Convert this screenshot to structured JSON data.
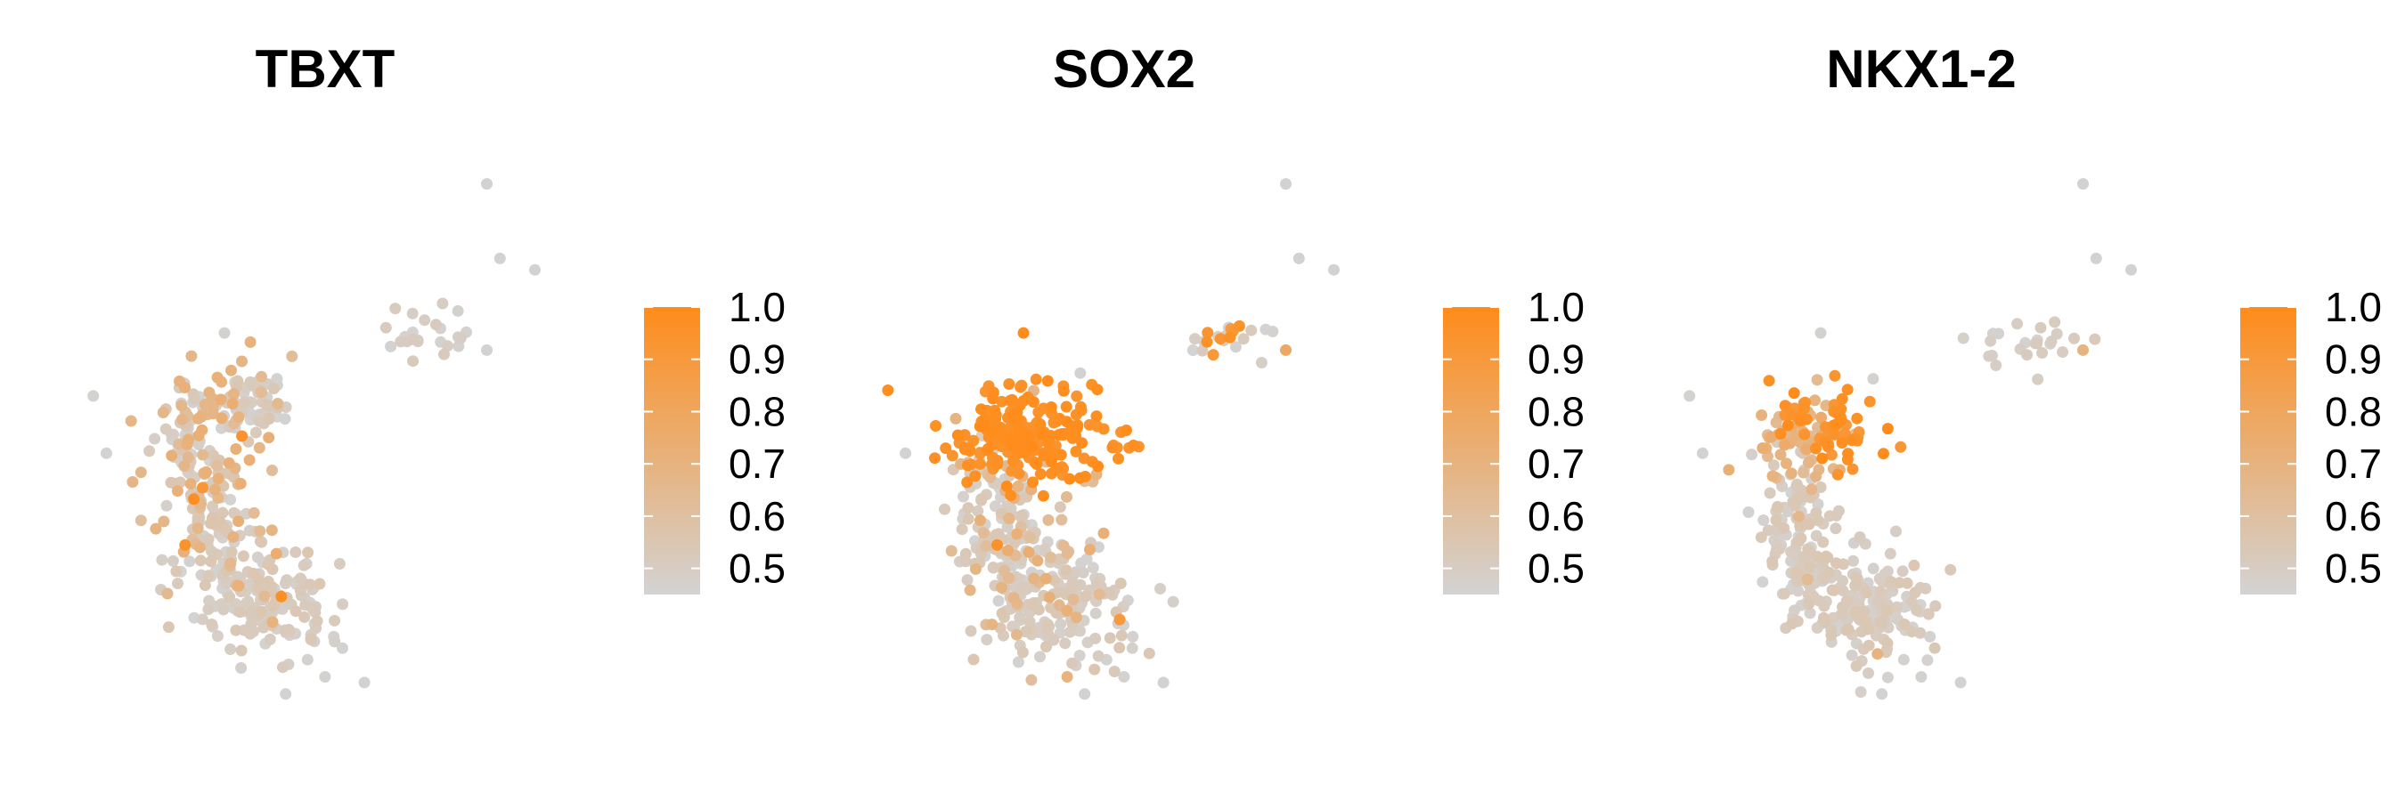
{
  "chart_data": [
    {
      "type": "scatter",
      "title": "TBXT",
      "xlabel": "",
      "ylabel": "",
      "grid": false,
      "axes_visible": false,
      "legend": {
        "type": "colorbar",
        "placement": "right",
        "range": [
          0.45,
          1.0
        ],
        "ticks": [
          0.5,
          0.6,
          0.7,
          0.8,
          0.9,
          1.0
        ],
        "tick_labels": [
          "0.5",
          "0.6",
          "0.7",
          "0.8",
          "0.9",
          "1.0"
        ],
        "low_color": "#d3d3d3",
        "high_color": "#ff8c1a"
      },
      "clusters": [
        {
          "cx": 7.0,
          "cy": 6.2,
          "sx": 0.6,
          "sy": 0.25,
          "n": 24,
          "value_range": [
            0.45,
            0.52
          ]
        },
        {
          "cx": 1.6,
          "cy": 4.2,
          "sx": 0.45,
          "sy": 0.55,
          "n": 70,
          "value_range": [
            0.45,
            0.56
          ]
        },
        {
          "cx": 2.8,
          "cy": 5.0,
          "sx": 0.45,
          "sy": 0.3,
          "n": 60,
          "value_range": [
            0.45,
            0.55
          ]
        },
        {
          "cx": 2.0,
          "cy": 2.6,
          "sx": 0.5,
          "sy": 0.5,
          "n": 70,
          "value_range": [
            0.45,
            0.56
          ]
        },
        {
          "cx": 3.3,
          "cy": 1.5,
          "sx": 0.75,
          "sy": 0.45,
          "n": 140,
          "value_range": [
            0.45,
            0.55
          ]
        },
        {
          "cx": 2.1,
          "cy": 3.9,
          "sx": 0.8,
          "sy": 1.2,
          "n": 85,
          "value_range": [
            0.6,
            0.74
          ]
        }
      ],
      "points": [
        {
          "x": 8.3,
          "y": 8.9,
          "v": 0.46
        },
        {
          "x": 8.6,
          "y": 7.6,
          "v": 0.46
        },
        {
          "x": 9.4,
          "y": 7.4,
          "v": 0.46
        },
        {
          "x": 8.3,
          "y": 6.0,
          "v": 0.46
        },
        {
          "x": 2.3,
          "y": 6.3,
          "v": 0.46
        },
        {
          "x": 3.5,
          "y": 5.5,
          "v": 0.46
        },
        {
          "x": -0.7,
          "y": 5.2,
          "v": 0.46
        },
        {
          "x": -0.4,
          "y": 4.2,
          "v": 0.46
        },
        {
          "x": 0.2,
          "y": 3.7,
          "v": 0.68
        },
        {
          "x": 4.8,
          "y": 1.0,
          "v": 0.46
        },
        {
          "x": 4.2,
          "y": 0.6,
          "v": 0.46
        },
        {
          "x": 5.5,
          "y": 0.2,
          "v": 0.46
        },
        {
          "x": 4.6,
          "y": 0.3,
          "v": 0.46
        },
        {
          "x": 3.7,
          "y": 0.0,
          "v": 0.46
        },
        {
          "x": 5.0,
          "y": 0.8,
          "v": 0.46
        },
        {
          "x": 1.6,
          "y": 3.4,
          "v": 0.98
        },
        {
          "x": 2.7,
          "y": 4.5,
          "v": 0.95
        },
        {
          "x": 1.4,
          "y": 2.6,
          "v": 0.95
        },
        {
          "x": 3.6,
          "y": 1.7,
          "v": 0.97
        },
        {
          "x": 1.8,
          "y": 3.6,
          "v": 0.92
        }
      ]
    },
    {
      "type": "scatter",
      "title": "SOX2",
      "xlabel": "",
      "ylabel": "",
      "grid": false,
      "axes_visible": false,
      "legend": {
        "type": "colorbar",
        "placement": "right",
        "range": [
          0.45,
          1.0
        ],
        "ticks": [
          0.5,
          0.6,
          0.7,
          0.8,
          0.9,
          1.0
        ],
        "tick_labels": [
          "0.5",
          "0.6",
          "0.7",
          "0.8",
          "0.9",
          "1.0"
        ],
        "low_color": "#d3d3d3",
        "high_color": "#ff8c1a"
      },
      "clusters": [
        {
          "cx": 7.0,
          "cy": 6.2,
          "sx": 0.6,
          "sy": 0.25,
          "n": 14,
          "value_range": [
            0.45,
            0.52
          ]
        },
        {
          "cx": 6.8,
          "cy": 6.3,
          "sx": 0.35,
          "sy": 0.2,
          "n": 8,
          "value_range": [
            0.88,
            1.0
          ]
        },
        {
          "cx": 2.4,
          "cy": 4.5,
          "sx": 0.95,
          "sy": 0.42,
          "n": 210,
          "value_range": [
            0.93,
            1.0
          ]
        },
        {
          "cx": 1.7,
          "cy": 3.3,
          "sx": 0.45,
          "sy": 0.6,
          "n": 70,
          "value_range": [
            0.45,
            0.55
          ]
        },
        {
          "cx": 2.0,
          "cy": 2.2,
          "sx": 0.55,
          "sy": 0.5,
          "n": 80,
          "value_range": [
            0.45,
            0.55
          ]
        },
        {
          "cx": 3.3,
          "cy": 1.5,
          "sx": 0.75,
          "sy": 0.45,
          "n": 140,
          "value_range": [
            0.45,
            0.55
          ]
        },
        {
          "cx": 2.3,
          "cy": 2.6,
          "sx": 0.9,
          "sy": 1.1,
          "n": 60,
          "value_range": [
            0.6,
            0.74
          ]
        }
      ],
      "points": [
        {
          "x": 8.3,
          "y": 8.9,
          "v": 0.46
        },
        {
          "x": 8.6,
          "y": 7.6,
          "v": 0.46
        },
        {
          "x": 9.4,
          "y": 7.4,
          "v": 0.46
        },
        {
          "x": 8.3,
          "y": 6.0,
          "v": 0.78
        },
        {
          "x": 2.3,
          "y": 6.3,
          "v": 1.0
        },
        {
          "x": -0.8,
          "y": 5.3,
          "v": 0.98
        },
        {
          "x": -0.4,
          "y": 4.2,
          "v": 0.46
        },
        {
          "x": 3.6,
          "y": 5.6,
          "v": 0.46
        },
        {
          "x": 4.5,
          "y": 1.3,
          "v": 0.9
        },
        {
          "x": 4.8,
          "y": 1.0,
          "v": 0.46
        },
        {
          "x": 4.2,
          "y": 0.6,
          "v": 0.46
        },
        {
          "x": 5.5,
          "y": 0.2,
          "v": 0.46
        },
        {
          "x": 4.6,
          "y": 0.3,
          "v": 0.46
        },
        {
          "x": 3.7,
          "y": 0.0,
          "v": 0.46
        },
        {
          "x": 3.3,
          "y": 0.3,
          "v": 0.7
        },
        {
          "x": 1.7,
          "y": 2.6,
          "v": 0.96
        }
      ]
    },
    {
      "type": "scatter",
      "title": "NKX1-2",
      "xlabel": "",
      "ylabel": "",
      "grid": false,
      "axes_visible": false,
      "legend": {
        "type": "colorbar",
        "placement": "right",
        "range": [
          0.45,
          1.0
        ],
        "ticks": [
          0.5,
          0.6,
          0.7,
          0.8,
          0.9,
          1.0
        ],
        "tick_labels": [
          "0.5",
          "0.6",
          "0.7",
          "0.8",
          "0.9",
          "1.0"
        ],
        "low_color": "#d3d3d3",
        "high_color": "#ff8c1a"
      },
      "clusters": [
        {
          "cx": 7.0,
          "cy": 6.2,
          "sx": 0.6,
          "sy": 0.25,
          "n": 24,
          "value_range": [
            0.45,
            0.52
          ]
        },
        {
          "cx": 2.5,
          "cy": 4.6,
          "sx": 0.55,
          "sy": 0.35,
          "n": 55,
          "value_range": [
            0.9,
            1.0
          ]
        },
        {
          "cx": 1.9,
          "cy": 4.3,
          "sx": 0.7,
          "sy": 0.4,
          "n": 60,
          "value_range": [
            0.62,
            0.76
          ]
        },
        {
          "cx": 1.7,
          "cy": 3.3,
          "sx": 0.45,
          "sy": 0.6,
          "n": 70,
          "value_range": [
            0.45,
            0.55
          ]
        },
        {
          "cx": 2.0,
          "cy": 2.2,
          "sx": 0.55,
          "sy": 0.5,
          "n": 80,
          "value_range": [
            0.45,
            0.55
          ]
        },
        {
          "cx": 3.3,
          "cy": 1.5,
          "sx": 0.75,
          "sy": 0.45,
          "n": 160,
          "value_range": [
            0.45,
            0.55
          ]
        }
      ],
      "points": [
        {
          "x": 8.3,
          "y": 8.9,
          "v": 0.46
        },
        {
          "x": 8.6,
          "y": 7.6,
          "v": 0.46
        },
        {
          "x": 9.4,
          "y": 7.4,
          "v": 0.46
        },
        {
          "x": 8.3,
          "y": 6.0,
          "v": 0.7
        },
        {
          "x": 2.3,
          "y": 6.3,
          "v": 0.46
        },
        {
          "x": 3.5,
          "y": 5.5,
          "v": 0.46
        },
        {
          "x": -0.7,
          "y": 5.2,
          "v": 0.46
        },
        {
          "x": -0.4,
          "y": 4.2,
          "v": 0.46
        },
        {
          "x": 1.8,
          "y": 3.1,
          "v": 0.66
        },
        {
          "x": 2.0,
          "y": 2.0,
          "v": 0.64
        },
        {
          "x": 3.6,
          "y": 0.7,
          "v": 0.7
        },
        {
          "x": 4.8,
          "y": 1.0,
          "v": 0.46
        },
        {
          "x": 4.2,
          "y": 0.6,
          "v": 0.46
        },
        {
          "x": 5.5,
          "y": 0.2,
          "v": 0.46
        },
        {
          "x": 4.6,
          "y": 0.3,
          "v": 0.46
        },
        {
          "x": 3.7,
          "y": 0.0,
          "v": 0.46
        }
      ]
    }
  ]
}
